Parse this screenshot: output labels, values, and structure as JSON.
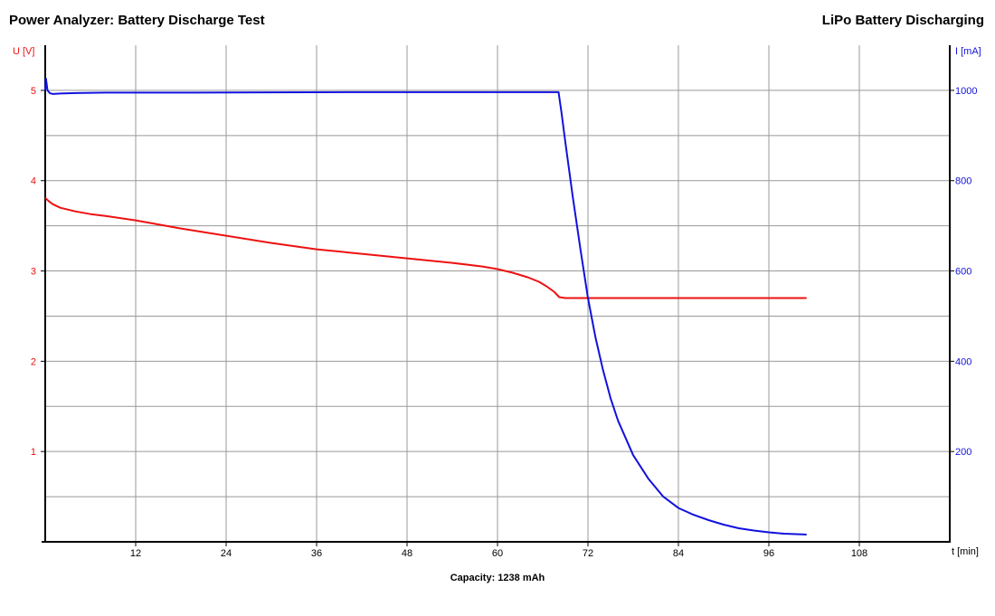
{
  "header": {
    "title": "Power Analyzer: Battery Discharge Test",
    "subtitle": "LiPo Battery Discharging"
  },
  "footer": {
    "capacity": "Capacity: 1238 mAh"
  },
  "colors": {
    "voltage": "#ee1111",
    "current": "#1111dd",
    "grid": "#999999",
    "axis": "#000000"
  },
  "chart_data": {
    "type": "line",
    "title": "Power Analyzer: Battery Discharge Test",
    "subtitle": "LiPo Battery Discharging",
    "xlabel": "t [min]",
    "xlim": [
      0,
      120
    ],
    "xticks": [
      12,
      24,
      36,
      48,
      60,
      72,
      84,
      96,
      108
    ],
    "grid": true,
    "y_left": {
      "label": "U [V]",
      "range": [
        0,
        5.5
      ],
      "ticks": [
        1,
        2,
        3,
        4,
        5
      ]
    },
    "y_right": {
      "label": "I [mA]",
      "range": [
        0,
        1100
      ],
      "ticks": [
        200,
        400,
        600,
        800,
        1000
      ]
    },
    "series": [
      {
        "name": "U [V]",
        "axis": "left",
        "color": "#ee1111",
        "x": [
          0,
          0.5,
          1,
          2,
          4,
          6,
          8,
          12,
          18,
          24,
          30,
          36,
          42,
          48,
          54,
          58,
          60,
          62,
          64,
          65.5,
          66.5,
          67.5,
          68.2,
          69,
          72,
          78,
          84,
          90,
          96,
          101
        ],
        "y": [
          3.81,
          3.77,
          3.74,
          3.7,
          3.66,
          3.63,
          3.61,
          3.56,
          3.47,
          3.39,
          3.31,
          3.24,
          3.19,
          3.14,
          3.09,
          3.05,
          3.02,
          2.98,
          2.93,
          2.88,
          2.83,
          2.77,
          2.71,
          2.7,
          2.7,
          2.7,
          2.7,
          2.7,
          2.7,
          2.7
        ]
      },
      {
        "name": "I [mA]",
        "axis": "right",
        "color": "#1111dd",
        "x": [
          0,
          0.1,
          0.3,
          0.6,
          1,
          2,
          4,
          8,
          20,
          40,
          60,
          67,
          68.1,
          68.5,
          69,
          70,
          71,
          72,
          73,
          74,
          75,
          76,
          78,
          80,
          82,
          84,
          86,
          88,
          90,
          92,
          94,
          96,
          98,
          101
        ],
        "y": [
          1000,
          1026,
          1000,
          994,
          992,
          993,
          994,
          995,
          995,
          996,
          996,
          996,
          996,
          950,
          885,
          763,
          648,
          540,
          453,
          380,
          318,
          268,
          192,
          140,
          100,
          75,
          60,
          48,
          38,
          30,
          25,
          21,
          18,
          16
        ]
      }
    ]
  }
}
